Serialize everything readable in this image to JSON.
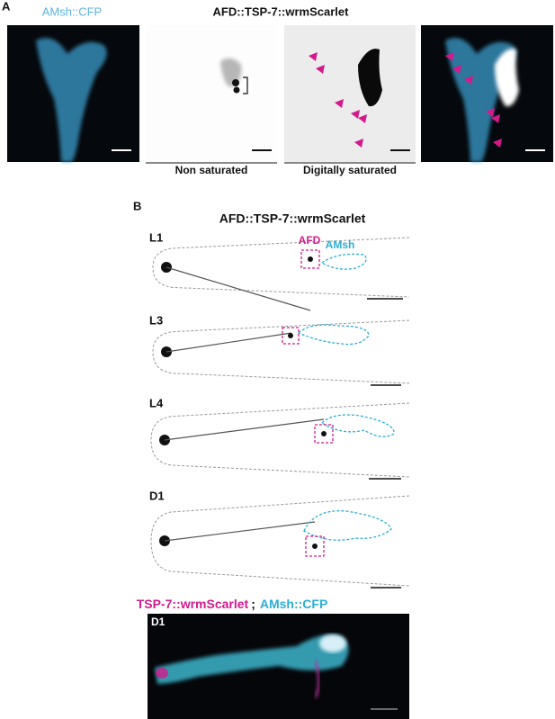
{
  "panel_a": {
    "label": "A",
    "left_label": "AMsh::CFP",
    "title": "AFD::TSP-7::wrmScarlet",
    "captions": [
      "Non saturated",
      "Digitally saturated"
    ]
  },
  "panel_b": {
    "label": "B",
    "title": "AFD::TSP-7::wrmScarlet",
    "stages": [
      "L1",
      "L3",
      "L4",
      "D1"
    ],
    "annotations": {
      "afd": "AFD",
      "amsh": "AMsh"
    },
    "merge_legend": {
      "red": "TSP-7::wrmScarlet",
      "separator": ";",
      "cyan": "AMsh::CFP"
    },
    "merge_stage": "D1"
  }
}
